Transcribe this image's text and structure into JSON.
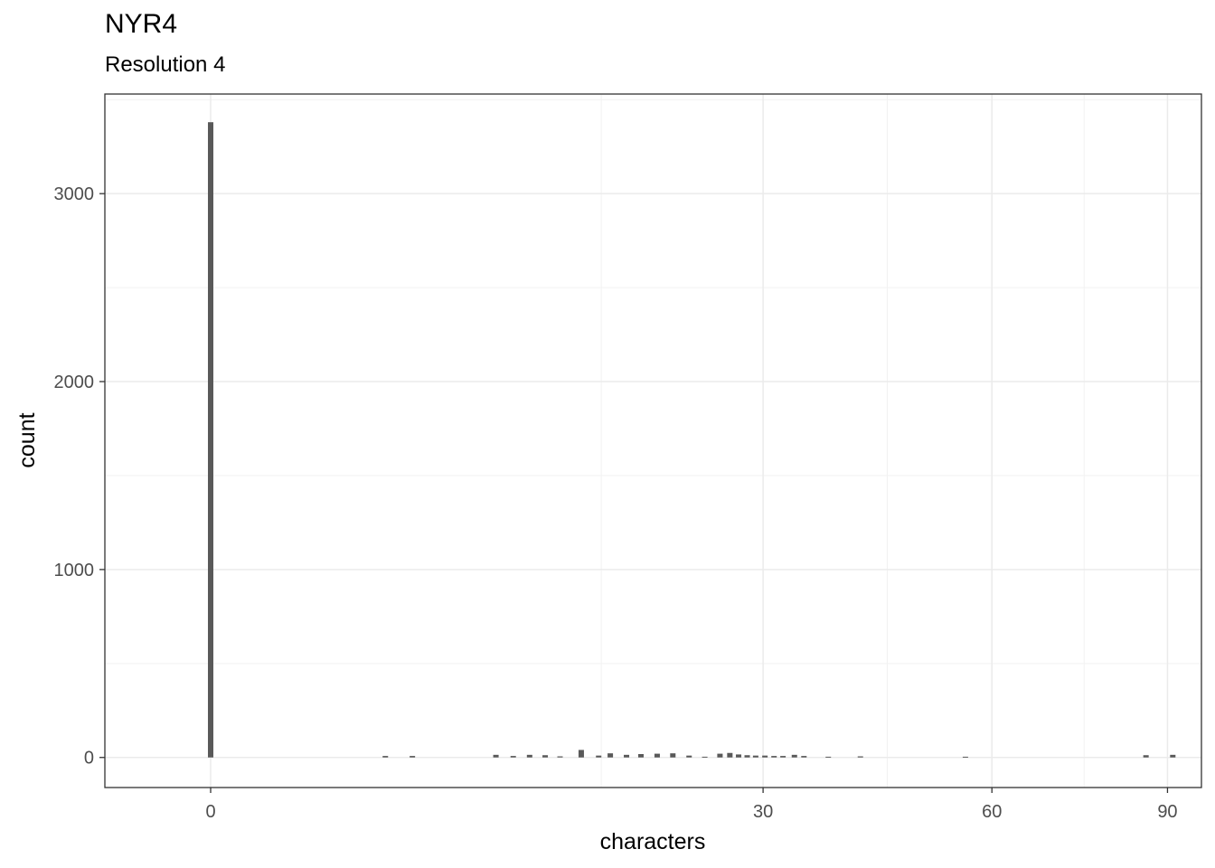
{
  "chart_data": {
    "type": "bar",
    "title": "NYR4",
    "subtitle": "Resolution 4",
    "xlabel": "characters",
    "ylabel": "count",
    "x_scale": "sqrt",
    "ylim": [
      -160,
      3530
    ],
    "xlim": [
      -1.1,
      96.5
    ],
    "x_ticks": [
      0,
      30,
      60,
      90
    ],
    "y_ticks": [
      0,
      1000,
      2000,
      3000
    ],
    "grid": true,
    "bar_color": "#595959",
    "x": [
      0,
      3,
      4,
      8,
      9,
      10,
      11,
      12,
      13.5,
      14.8,
      15.7,
      17,
      18.2,
      19.6,
      21,
      22.5,
      24,
      25.5,
      26.5,
      27.4,
      28.3,
      29.2,
      30.2,
      31.2,
      32.2,
      33.5,
      34.6,
      37.5,
      41.5,
      56,
      86,
      91
    ],
    "values": [
      3380,
      8,
      8,
      14,
      8,
      14,
      12,
      6,
      40,
      10,
      22,
      14,
      18,
      20,
      22,
      10,
      4,
      20,
      24,
      16,
      12,
      10,
      10,
      8,
      8,
      14,
      8,
      4,
      6,
      4,
      12,
      14
    ]
  }
}
